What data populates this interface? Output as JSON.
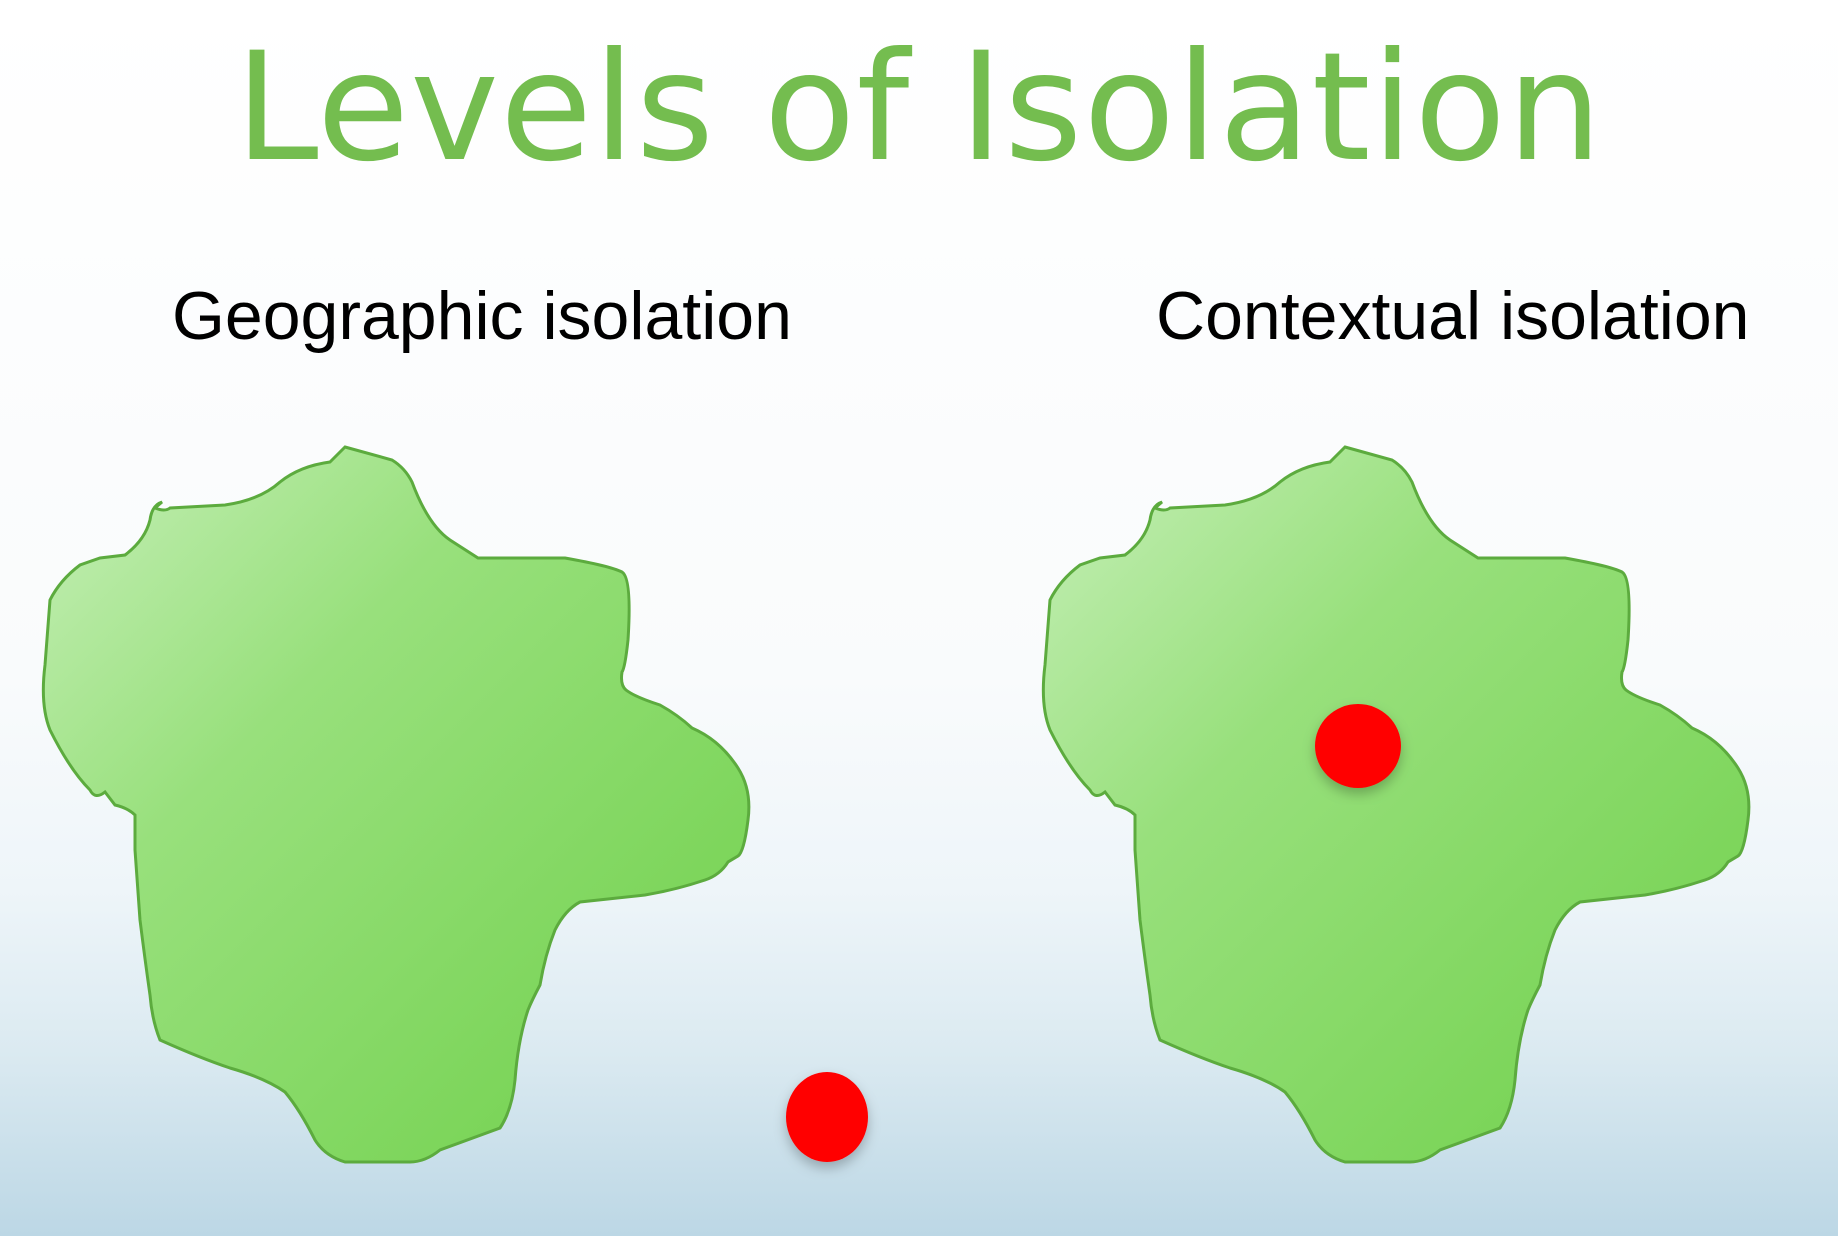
{
  "title": "Levels of Isolation",
  "panels": [
    {
      "label": "Geographic isolation",
      "dot_position": "outside"
    },
    {
      "label": "Contextual isolation",
      "dot_position": "inside"
    }
  ],
  "colors": {
    "title": "#74bd4f",
    "region_fill_light": "#b2e7a2",
    "region_fill_dark": "#74d250",
    "region_stroke": "#5cab3e",
    "dot": "#ff0000"
  }
}
